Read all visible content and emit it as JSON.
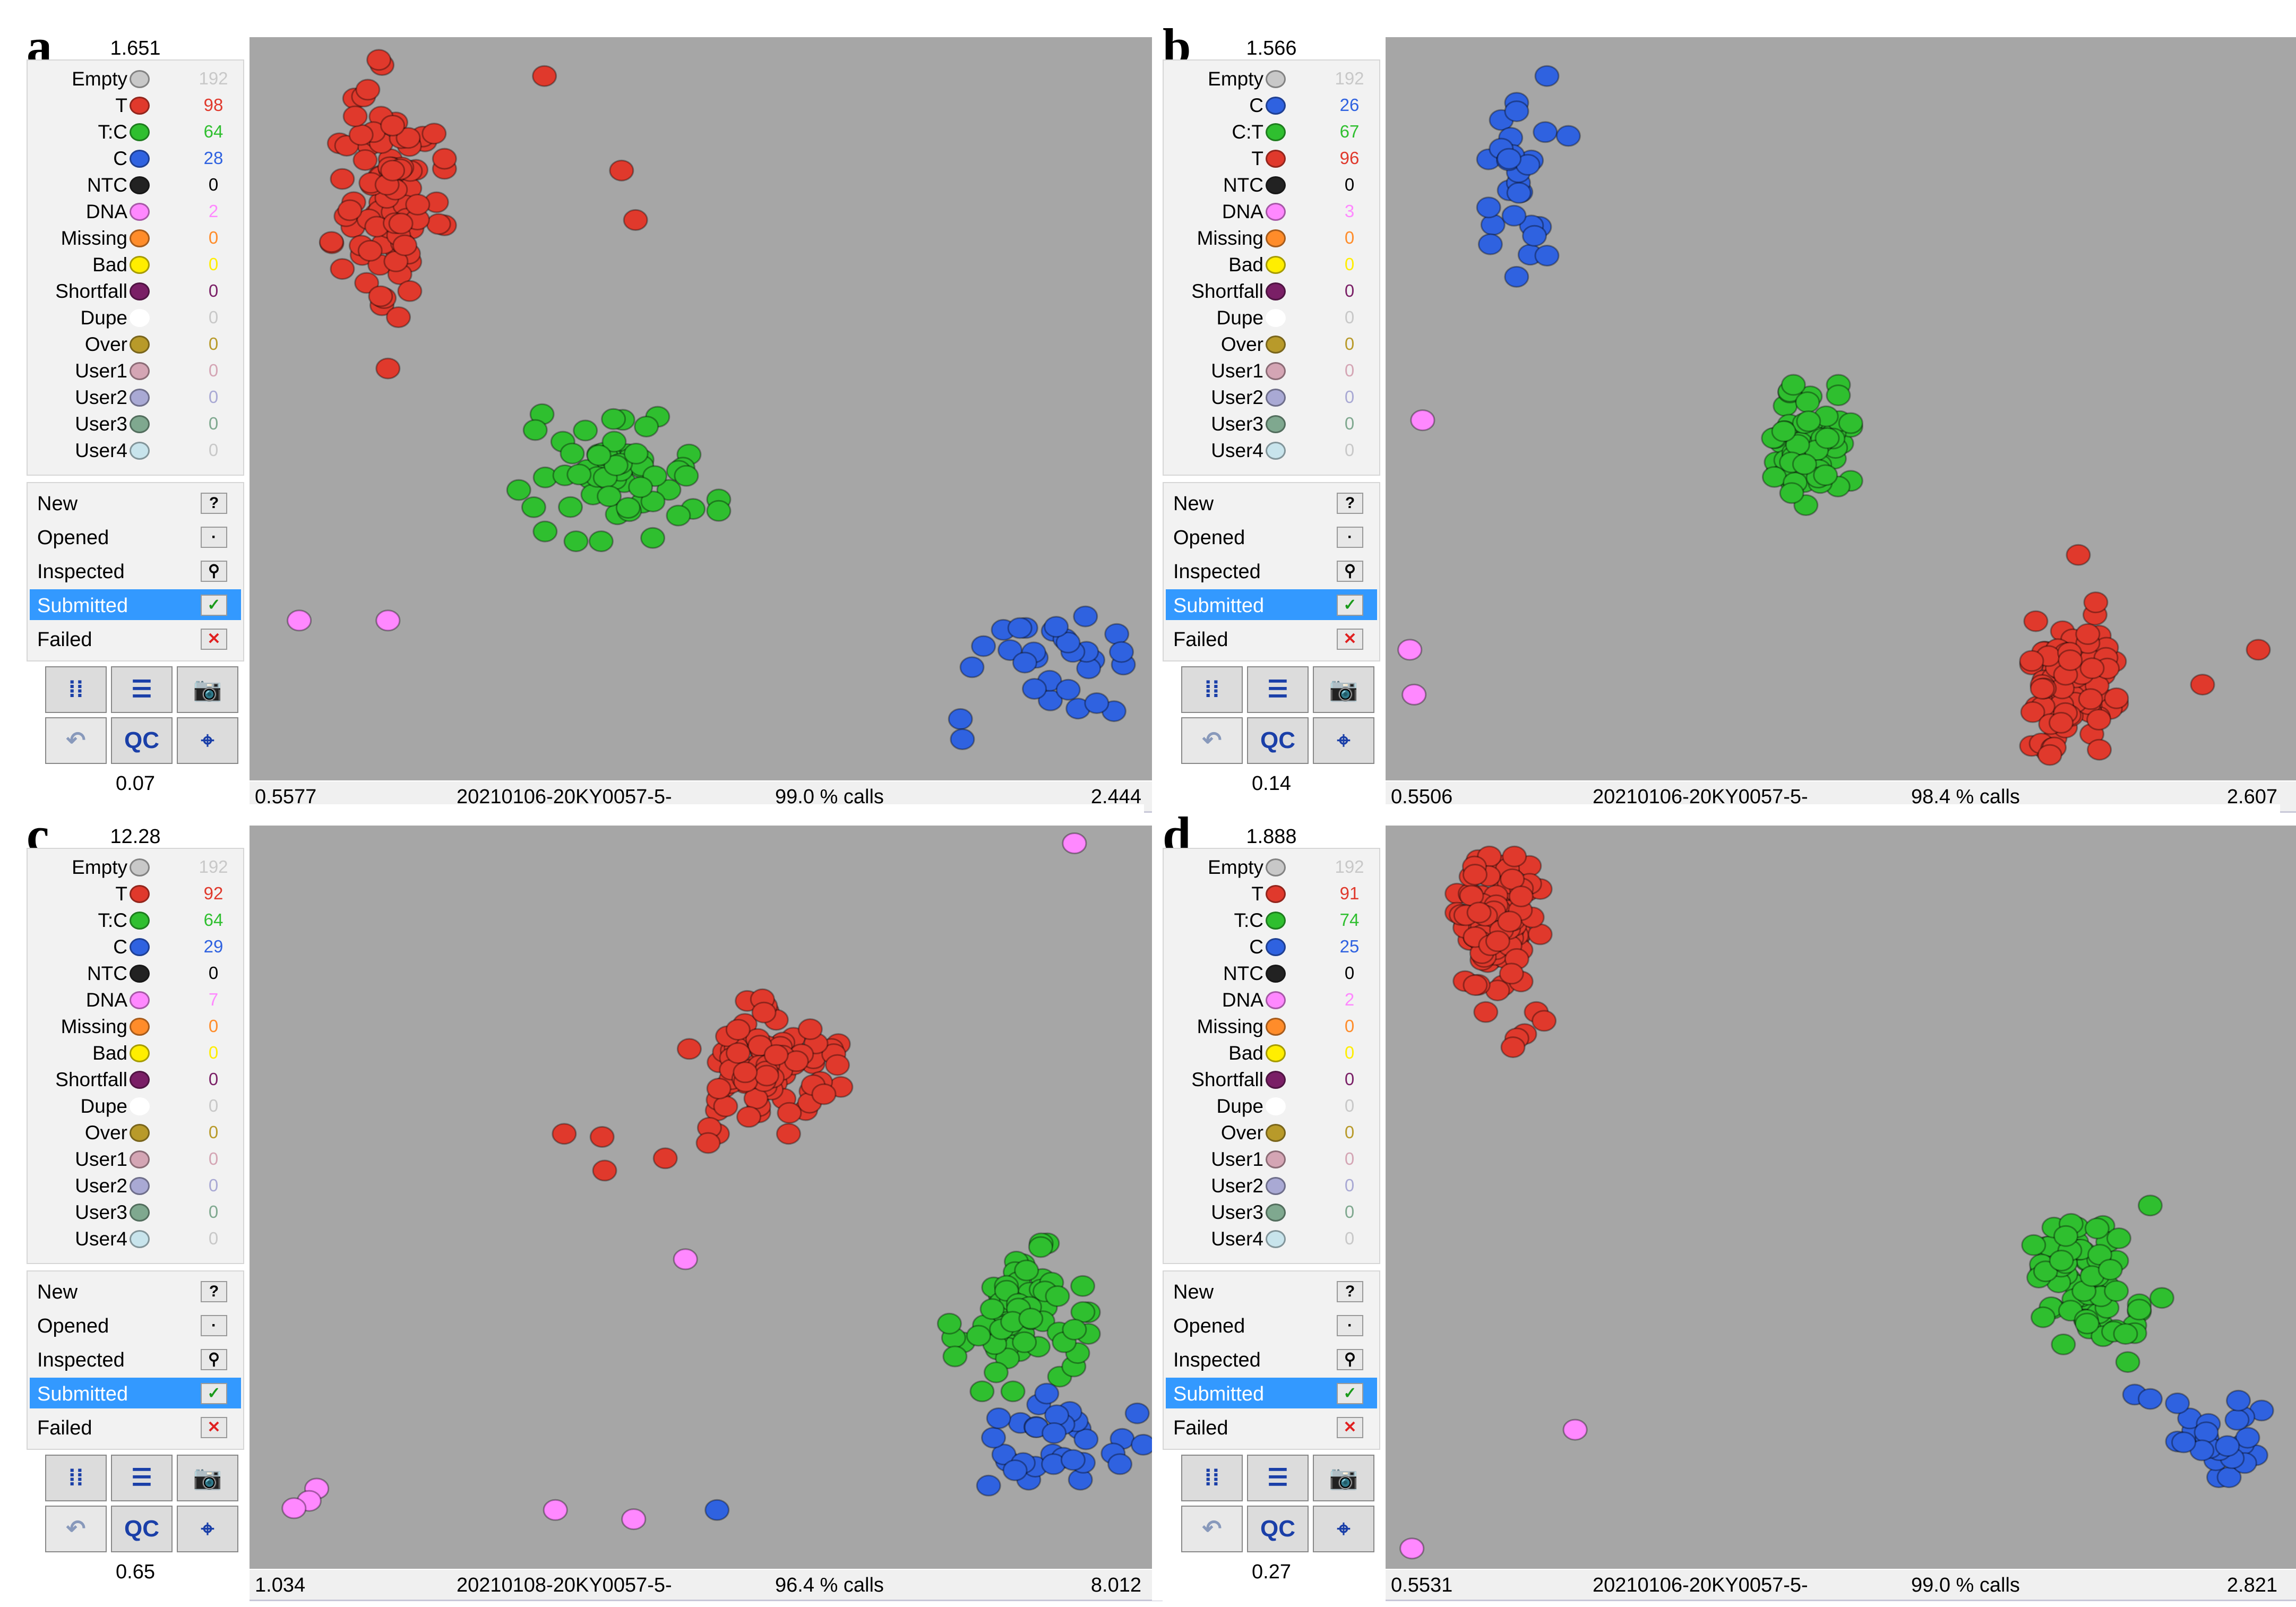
{
  "status_items": [
    {
      "label": "New",
      "icon": "question-icon"
    },
    {
      "label": "Opened",
      "icon": "opened-icon"
    },
    {
      "label": "Inspected",
      "icon": "inspected-icon"
    },
    {
      "label": "Submitted",
      "icon": "submitted-check-icon"
    },
    {
      "label": "Failed",
      "icon": "failed-x-icon"
    }
  ],
  "tool_buttons": {
    "qc_label": "QC"
  },
  "colors": {
    "Empty": "#c8c8c8",
    "T": "#e0392c",
    "C": "#2f62e0",
    "T:C": "#2fbf2f",
    "C:T": "#2fbf2f",
    "NTC": "#222222",
    "DNA": "#ff88ff",
    "Missing": "#ff8c2a",
    "Bad": "#ffee00",
    "Shortfall": "#7a1f66",
    "Dupe": "#ffffff",
    "Over": "#b89a2a",
    "User1": "#d4a5b4",
    "User2": "#a9a9d4",
    "User3": "#7fa88f",
    "User4": "#c8e4ec"
  },
  "panels": [
    {
      "letter": "a",
      "ymax": "1.651",
      "ymin": "0.07",
      "xmin": "0.5577",
      "xmax": "2.444",
      "run": "20210106-20KY0057-5-",
      "calls": "99.0 % calls",
      "legend": [
        {
          "label": "Empty",
          "count": "192"
        },
        {
          "label": "T",
          "count": "98"
        },
        {
          "label": "T:C",
          "count": "64"
        },
        {
          "label": "C",
          "count": "28"
        },
        {
          "label": "NTC",
          "count": "0"
        },
        {
          "label": "DNA",
          "count": "2"
        },
        {
          "label": "Missing",
          "count": "0"
        },
        {
          "label": "Bad",
          "count": "0"
        },
        {
          "label": "Shortfall",
          "count": "0"
        },
        {
          "label": "Dupe",
          "count": "0"
        },
        {
          "label": "Over",
          "count": "0"
        },
        {
          "label": "User1",
          "count": "0"
        },
        {
          "label": "User2",
          "count": "0"
        },
        {
          "label": "User3",
          "count": "0"
        },
        {
          "label": "User4",
          "count": "0"
        }
      ]
    },
    {
      "letter": "b",
      "ymax": "1.566",
      "ymin": "0.14",
      "xmin": "0.5506",
      "xmax": "2.607",
      "run": "20210106-20KY0057-5-",
      "calls": "98.4 % calls",
      "legend": [
        {
          "label": "Empty",
          "count": "192"
        },
        {
          "label": "C",
          "count": "26"
        },
        {
          "label": "C:T",
          "count": "67"
        },
        {
          "label": "T",
          "count": "96"
        },
        {
          "label": "NTC",
          "count": "0"
        },
        {
          "label": "DNA",
          "count": "3"
        },
        {
          "label": "Missing",
          "count": "0"
        },
        {
          "label": "Bad",
          "count": "0"
        },
        {
          "label": "Shortfall",
          "count": "0"
        },
        {
          "label": "Dupe",
          "count": "0"
        },
        {
          "label": "Over",
          "count": "0"
        },
        {
          "label": "User1",
          "count": "0"
        },
        {
          "label": "User2",
          "count": "0"
        },
        {
          "label": "User3",
          "count": "0"
        },
        {
          "label": "User4",
          "count": "0"
        }
      ]
    },
    {
      "letter": "c",
      "ymax": "12.28",
      "ymin": "0.65",
      "xmin": "1.034",
      "xmax": "8.012",
      "run": "20210108-20KY0057-5-",
      "calls": "96.4 % calls",
      "legend": [
        {
          "label": "Empty",
          "count": "192"
        },
        {
          "label": "T",
          "count": "92"
        },
        {
          "label": "T:C",
          "count": "64"
        },
        {
          "label": "C",
          "count": "29"
        },
        {
          "label": "NTC",
          "count": "0"
        },
        {
          "label": "DNA",
          "count": "7"
        },
        {
          "label": "Missing",
          "count": "0"
        },
        {
          "label": "Bad",
          "count": "0"
        },
        {
          "label": "Shortfall",
          "count": "0"
        },
        {
          "label": "Dupe",
          "count": "0"
        },
        {
          "label": "Over",
          "count": "0"
        },
        {
          "label": "User1",
          "count": "0"
        },
        {
          "label": "User2",
          "count": "0"
        },
        {
          "label": "User3",
          "count": "0"
        },
        {
          "label": "User4",
          "count": "0"
        }
      ]
    },
    {
      "letter": "d",
      "ymax": "1.888",
      "ymin": "0.27",
      "xmin": "0.5531",
      "xmax": "2.821",
      "run": "20210106-20KY0057-5-",
      "calls": "99.0 % calls",
      "legend": [
        {
          "label": "Empty",
          "count": "192"
        },
        {
          "label": "T",
          "count": "91"
        },
        {
          "label": "T:C",
          "count": "74"
        },
        {
          "label": "C",
          "count": "25"
        },
        {
          "label": "NTC",
          "count": "0"
        },
        {
          "label": "DNA",
          "count": "2"
        },
        {
          "label": "Missing",
          "count": "0"
        },
        {
          "label": "Bad",
          "count": "0"
        },
        {
          "label": "Shortfall",
          "count": "0"
        },
        {
          "label": "Dupe",
          "count": "0"
        },
        {
          "label": "Over",
          "count": "0"
        },
        {
          "label": "User1",
          "count": "0"
        },
        {
          "label": "User2",
          "count": "0"
        },
        {
          "label": "User3",
          "count": "0"
        },
        {
          "label": "User4",
          "count": "0"
        }
      ]
    }
  ],
  "chart_data": [
    {
      "type": "scatter",
      "xlim": [
        0.5577,
        2.444
      ],
      "ylim": [
        0.07,
        1.651
      ],
      "series": [
        {
          "name": "T",
          "cluster": {
            "cx": 0.82,
            "cy": 1.35,
            "sx": 0.055,
            "sy": 0.13,
            "n": 98
          },
          "outliers": [
            [
              1.155,
              1.6
            ],
            [
              1.35,
              1.28
            ],
            [
              1.32,
              1.39
            ],
            [
              0.83,
              1.49
            ],
            [
              0.83,
              1.39
            ],
            [
              0.82,
              0.95
            ]
          ]
        },
        {
          "name": "T:C",
          "cluster": {
            "cx": 1.33,
            "cy": 0.72,
            "sx": 0.09,
            "sy": 0.07,
            "n": 64
          },
          "outliers": [
            [
              1.1,
              0.68
            ]
          ]
        },
        {
          "name": "C",
          "cluster": {
            "cx": 2.22,
            "cy": 0.28,
            "sx": 0.09,
            "sy": 0.07,
            "n": 28
          },
          "outliers": [
            [
              2.38,
              0.36
            ],
            [
              2.39,
              0.32
            ]
          ]
        },
        {
          "name": "DNA",
          "points": [
            [
              0.63,
              0.39
            ],
            [
              0.82,
              0.39
            ]
          ]
        }
      ]
    },
    {
      "type": "scatter",
      "xlim": [
        0.5506,
        2.607
      ],
      "ylim": [
        0.14,
        1.566
      ],
      "series": [
        {
          "name": "C",
          "cluster": {
            "cx": 0.82,
            "cy": 1.31,
            "sx": 0.03,
            "sy": 0.1,
            "n": 26
          },
          "outliers": [
            [
              0.89,
              1.52
            ],
            [
              0.94,
              1.4
            ],
            [
              0.89,
              1.16
            ]
          ]
        },
        {
          "name": "C:T",
          "cluster": {
            "cx": 1.5,
            "cy": 0.78,
            "sx": 0.045,
            "sy": 0.055,
            "n": 67
          },
          "outliers": [
            [
              1.57,
              0.88
            ],
            [
              1.54,
              0.72
            ]
          ]
        },
        {
          "name": "T",
          "cluster": {
            "cx": 2.12,
            "cy": 0.3,
            "sx": 0.045,
            "sy": 0.075,
            "n": 96
          },
          "outliers": [
            [
              2.55,
              0.37
            ],
            [
              2.42,
              0.3
            ],
            [
              2.13,
              0.56
            ]
          ]
        },
        {
          "name": "DNA",
          "points": [
            [
              0.6,
              0.83
            ],
            [
              0.57,
              0.37
            ],
            [
              0.58,
              0.28
            ]
          ]
        }
      ]
    },
    {
      "type": "scatter",
      "xlim": [
        1.034,
        8.012
      ],
      "ylim": [
        0.65,
        12.28
      ],
      "series": [
        {
          "name": "T",
          "cluster": {
            "cx": 5.0,
            "cy": 8.6,
            "sx": 0.28,
            "sy": 0.5,
            "n": 92
          },
          "outliers": [
            [
              4.55,
              7.6
            ],
            [
              4.2,
              7.1
            ],
            [
              3.4,
              7.5
            ],
            [
              3.7,
              7.45
            ],
            [
              3.72,
              6.9
            ],
            [
              4.54,
              7.35
            ]
          ]
        },
        {
          "name": "T:C",
          "cluster": {
            "cx": 7.0,
            "cy": 4.5,
            "sx": 0.25,
            "sy": 0.55,
            "n": 64
          },
          "outliers": [
            [
              7.44,
              4.3
            ],
            [
              6.82,
              3.6
            ]
          ]
        },
        {
          "name": "C",
          "cluster": {
            "cx": 7.34,
            "cy": 2.55,
            "sx": 0.3,
            "sy": 0.32,
            "n": 29
          },
          "outliers": [
            [
              6.84,
              2.85
            ],
            [
              6.97,
              2.0
            ],
            [
              6.76,
              1.75
            ],
            [
              4.61,
              1.35
            ],
            [
              7.8,
              2.1
            ]
          ]
        },
        {
          "name": "DNA",
          "points": [
            [
              7.44,
              12.25
            ],
            [
              4.36,
              5.45
            ],
            [
              1.44,
              1.7
            ],
            [
              1.38,
              1.5
            ],
            [
              1.26,
              1.38
            ],
            [
              3.33,
              1.35
            ],
            [
              3.95,
              1.2
            ]
          ]
        }
      ]
    },
    {
      "type": "scatter",
      "xlim": [
        0.5531,
        2.821
      ],
      "ylim": [
        0.27,
        1.888
      ],
      "series": [
        {
          "name": "T",
          "cluster": {
            "cx": 0.8,
            "cy": 1.7,
            "sx": 0.05,
            "sy": 0.07,
            "n": 91
          },
          "outliers": [
            [
              0.9,
              1.5
            ],
            [
              0.92,
              1.48
            ],
            [
              0.87,
              1.45
            ],
            [
              0.85,
              1.44
            ],
            [
              0.84,
              1.42
            ],
            [
              0.77,
              1.5
            ]
          ]
        },
        {
          "name": "T:C",
          "cluster": {
            "cx": 2.32,
            "cy": 0.88,
            "sx": 0.06,
            "sy": 0.08,
            "n": 74
          },
          "outliers": [
            [
              2.48,
              1.06
            ],
            [
              2.51,
              0.85
            ],
            [
              2.18,
              0.97
            ]
          ]
        },
        {
          "name": "C",
          "cluster": {
            "cx": 2.66,
            "cy": 0.53,
            "sx": 0.06,
            "sy": 0.04,
            "n": 25
          },
          "outliers": [
            [
              2.44,
              0.63
            ],
            [
              2.55,
              0.61
            ],
            [
              2.48,
              0.62
            ]
          ]
        },
        {
          "name": "DNA",
          "points": [
            [
              1.0,
              0.55
            ],
            [
              0.58,
              0.28
            ]
          ]
        }
      ]
    }
  ]
}
